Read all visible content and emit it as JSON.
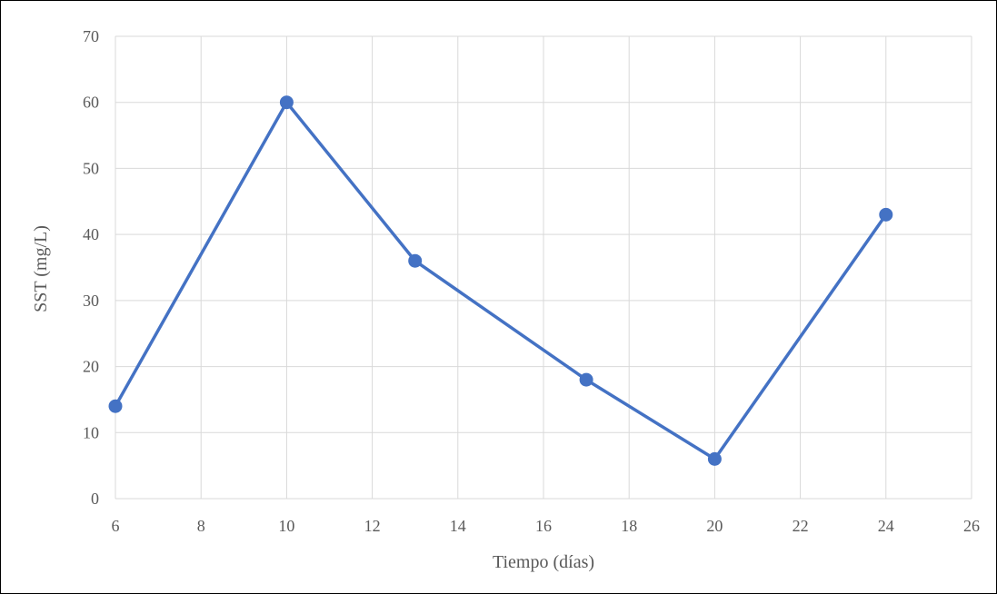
{
  "chart_data": {
    "type": "line",
    "title": "",
    "xlabel": "Tiempo (días)",
    "ylabel": "SST (mg/L)",
    "xlim": [
      6,
      26
    ],
    "ylim": [
      0,
      70
    ],
    "xticks": [
      6,
      8,
      10,
      12,
      14,
      16,
      18,
      20,
      22,
      24,
      26
    ],
    "yticks": [
      0,
      10,
      20,
      30,
      40,
      50,
      60,
      70
    ],
    "grid": true,
    "legend": "none",
    "series": [
      {
        "color": "#4472c4",
        "x": [
          6,
          10,
          13,
          17,
          20,
          24
        ],
        "y": [
          14,
          60,
          36,
          18,
          6,
          43
        ]
      }
    ]
  }
}
